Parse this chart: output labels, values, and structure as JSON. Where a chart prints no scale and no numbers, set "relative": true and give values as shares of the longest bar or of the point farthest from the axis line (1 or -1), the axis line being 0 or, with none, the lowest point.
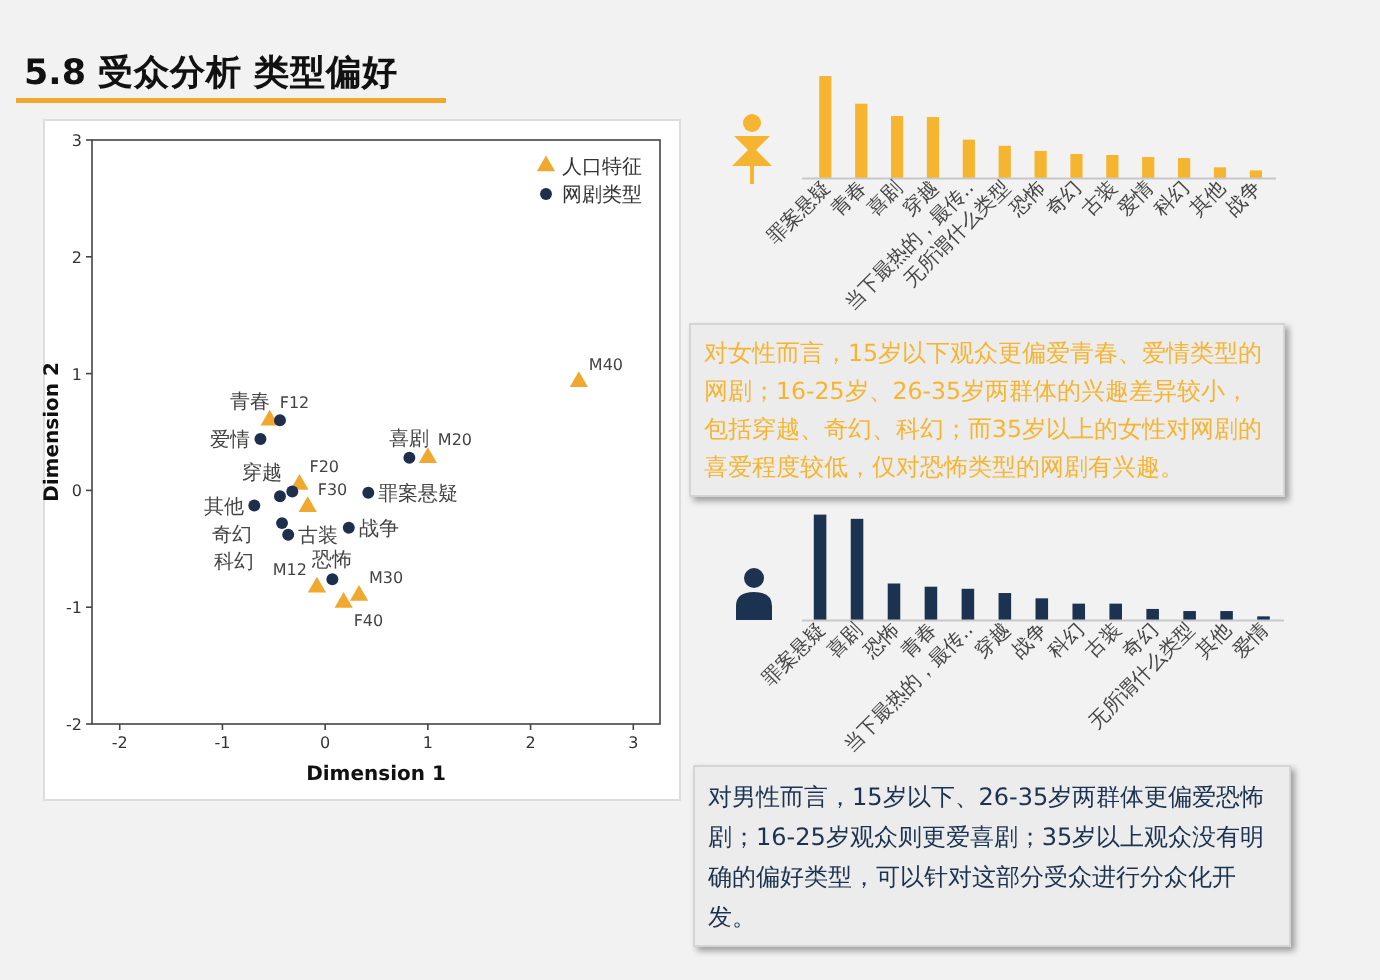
{
  "chart_data": [
    {
      "type": "scatter",
      "title": "5.8 受众分析 类型偏好",
      "xlabel": "Dimension 1",
      "ylabel": "Dimension 2",
      "xlim": [
        -2.27,
        3.26
      ],
      "ylim": [
        -2,
        3
      ],
      "xticks": [
        -2,
        -1,
        0,
        1,
        2,
        3
      ],
      "yticks": [
        -2,
        -1,
        0,
        1,
        2,
        3
      ],
      "legend": "top right",
      "series": [
        {
          "name": "人口特征",
          "color": "#f0a92e",
          "marker": "triangle",
          "x": [
            -0.54,
            2.47,
            1.0,
            -0.25,
            -0.17,
            -0.08,
            0.18,
            0.33
          ],
          "values": [
            0.6,
            0.93,
            0.28,
            0.05,
            -0.14,
            -0.83,
            -0.96,
            -0.9
          ]
        },
        {
          "name": "网剧类型",
          "color": "#1e2f4d",
          "marker": "circle",
          "x": [
            -0.44,
            -0.63,
            0.82,
            0.42,
            -0.32,
            -0.69,
            -0.44,
            -0.42,
            -0.36,
            0.23,
            0.07
          ],
          "values": [
            0.6,
            0.44,
            0.28,
            -0.02,
            -0.01,
            -0.13,
            -0.05,
            -0.28,
            -0.38,
            -0.32,
            -0.76
          ]
        }
      ],
      "annotations": [
        {
          "text": "F12",
          "x": -0.54,
          "y": 0.6
        },
        {
          "text": "M40",
          "x": 2.47,
          "y": 0.93
        },
        {
          "text": "M20",
          "x": 1.0,
          "y": 0.28
        },
        {
          "text": "F20",
          "x": -0.25,
          "y": 0.05
        },
        {
          "text": "F30",
          "x": -0.17,
          "y": -0.14
        },
        {
          "text": "M12",
          "x": -0.08,
          "y": -0.83
        },
        {
          "text": "F40",
          "x": 0.18,
          "y": -0.96
        },
        {
          "text": "M30",
          "x": 0.33,
          "y": -0.9
        },
        {
          "text": "青春",
          "x": -0.44,
          "y": 0.6
        },
        {
          "text": "爱情",
          "x": -0.63,
          "y": 0.44
        },
        {
          "text": "喜剧",
          "x": 0.82,
          "y": 0.28
        },
        {
          "text": "罪案悬疑",
          "x": 0.42,
          "y": -0.02
        },
        {
          "text": "穿越",
          "x": -0.32,
          "y": -0.01
        },
        {
          "text": "其他",
          "x": -0.69,
          "y": -0.13
        },
        {
          "text": "奇幻",
          "x": -0.44,
          "y": -0.05
        },
        {
          "text": "科幻",
          "x": -0.42,
          "y": -0.28
        },
        {
          "text": "古装",
          "x": -0.36,
          "y": -0.38
        },
        {
          "text": "战争",
          "x": 0.23,
          "y": -0.32
        },
        {
          "text": "恐怖",
          "x": 0.07,
          "y": -0.76
        }
      ]
    },
    {
      "type": "bar",
      "relative": true,
      "color": "#f6b530",
      "categories": [
        "罪案悬疑",
        "青春",
        "喜剧",
        "穿越",
        "当下最热的，最传..",
        "无所谓什么类型",
        "恐怖",
        "奇幻",
        "古装",
        "爱情",
        "科幻",
        "其他",
        "战争"
      ],
      "values": [
        1,
        0.73,
        0.61,
        0.6,
        0.38,
        0.32,
        0.27,
        0.24,
        0.23,
        0.21,
        0.2,
        0.11,
        0.08
      ],
      "annotations": [
        "对女性而言，15岁以下观众更偏爱青春、爱情类型的网剧；16-25岁、26-35岁两群体的兴趣差异较小，包括穿越、奇幻、科幻；而35岁以上的女性对网剧的喜爱程度较低，仅对恐怖类型的网剧有兴趣。"
      ]
    },
    {
      "type": "bar",
      "relative": true,
      "color": "#1b3250",
      "categories": [
        "罪案悬疑",
        "喜剧",
        "恐怖",
        "青春",
        "当下最热的，最传..",
        "穿越",
        "战争",
        "科幻",
        "古装",
        "奇幻",
        "无所谓什么类型",
        "其他",
        "爱情"
      ],
      "values": [
        1,
        0.96,
        0.35,
        0.32,
        0.3,
        0.26,
        0.21,
        0.16,
        0.16,
        0.11,
        0.09,
        0.09,
        0.04
      ],
      "annotations": [
        "对男性而言，15岁以下、26-35岁两群体更偏爱恐怖剧；16-25岁观众则更爱喜剧；35岁以上观众没有明确的偏好类型，可以针对这部分受众进行分众化开发。"
      ]
    }
  ]
}
